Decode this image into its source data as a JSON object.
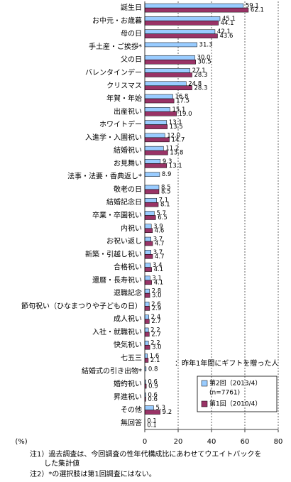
{
  "chart_data": {
    "type": "hbar",
    "categories": [
      "誕生日",
      "お中元・お歳暮",
      "母の日",
      "手土産・ご挨拶*",
      "父の日",
      "バレンタインデー",
      "クリスマス",
      "年賀・年始",
      "出産祝い",
      "ホワイトデー",
      "入進学・入園祝い",
      "結婚祝い",
      "お見舞い",
      "法事・法要・香典返し*",
      "敬老の日",
      "結婚記念日",
      "卒業・卒園祝い",
      "内祝い",
      "お祝い返し",
      "新築・引越し祝い",
      "合格祝い",
      "還暦・長寿祝い",
      "退職記念",
      "節句祝い（ひなまつりや子どもの日）",
      "成人祝い",
      "入社・就職祝い",
      "快気祝い",
      "七五三",
      "結婚式の引き出物*",
      "婚約祝い",
      "昇進祝い",
      "その他",
      "無回答"
    ],
    "series": [
      {
        "name": "第2回（2013/4）",
        "subname": "(n=7761)",
        "color": "#99ccff",
        "values": [
          59.1,
          45.1,
          42.1,
          31.3,
          30.0,
          27.1,
          24.8,
          16.8,
          15.1,
          13.1,
          12.0,
          11.2,
          9.3,
          8.9,
          8.5,
          7.1,
          5.7,
          3.9,
          3.7,
          3.7,
          3.4,
          3.1,
          2.8,
          2.6,
          2.4,
          2.2,
          2.2,
          1.6,
          0.8,
          0.6,
          0.6,
          5.3,
          0.1
        ],
        "value_labels": [
          "59.1",
          "45.1",
          "42.1",
          "31.3",
          "30.0",
          "27.1",
          "24.8",
          "16.8",
          "15.1",
          "13.1",
          "12.0",
          "11.2",
          "9.3",
          "8.9",
          "8.5",
          "7.1",
          "5.7",
          "3.9",
          "3.7",
          "3.7",
          "3.4",
          "3.1",
          "2.8",
          "2.6",
          "2.4",
          "2.2",
          "2.2",
          "1.6",
          "0.8",
          "0.6",
          "0.6",
          "5.3",
          "0.1"
        ]
      },
      {
        "name": "第1回（2010/4）",
        "color": "#993366",
        "values": [
          62.1,
          44.1,
          43.6,
          null,
          30.5,
          28.3,
          28.3,
          17.5,
          19.0,
          13.5,
          14.7,
          13.8,
          13.1,
          null,
          8.5,
          8.1,
          6.5,
          4.6,
          4.7,
          4.7,
          4.1,
          4.1,
          3.0,
          2.9,
          2.7,
          2.7,
          3.0,
          2.1,
          null,
          0.9,
          0.6,
          9.2,
          0.1
        ],
        "value_labels": [
          "62.1",
          "44.1",
          "43.6",
          null,
          "30.5",
          "28.3",
          "28.3",
          "17.5",
          "19.0",
          "13.5",
          "14.7",
          "13.8",
          "13.1",
          null,
          "8.5",
          "8.1",
          "6.5",
          "4.6",
          "4.7",
          "4.7",
          "4.1",
          "4.1",
          "3.0",
          "2.9",
          "2.7",
          "2.7",
          "3.0",
          "2.1",
          null,
          "0.9",
          "0.6",
          "9.2",
          "0.1"
        ]
      }
    ],
    "xlim": [
      0,
      80
    ],
    "xticks": [
      0,
      20,
      40,
      60,
      80
    ],
    "xlabel": "(%)",
    "grid": true,
    "annotation": "：昨年1年間にギフトを贈った人",
    "notes": [
      "注1）過去調査は、今回調査の性年代構成比にあわせてウエイトバックを",
      "した集計値",
      "注2）*の選択肢は第1回調査にはない。"
    ]
  }
}
